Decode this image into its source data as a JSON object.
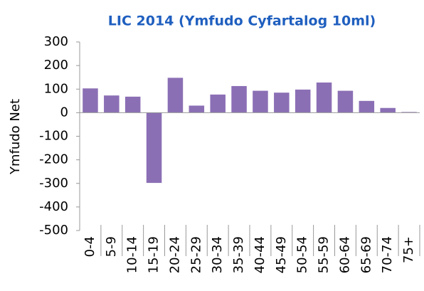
{
  "chart_data": {
    "type": "bar",
    "title": "LIC 2014 (Ymfudo Cyfartalog 10ml)",
    "y_label": "Ymfudo Net",
    "categories": [
      "0-4",
      "5-9",
      "10-14",
      "15-19",
      "20-24",
      "25-29",
      "30-34",
      "35-39",
      "40-44",
      "45-49",
      "50-54",
      "55-59",
      "60-64",
      "65-69",
      "70-74",
      "75+"
    ],
    "values": [
      103,
      73,
      68,
      -298,
      148,
      30,
      77,
      113,
      93,
      85,
      98,
      128,
      93,
      50,
      20,
      3
    ],
    "color": "#8b6fb5",
    "ylim": [
      -500,
      300
    ],
    "yticks": [
      -500,
      -400,
      -300,
      -200,
      -100,
      0,
      100,
      200,
      300
    ],
    "grid": false
  }
}
